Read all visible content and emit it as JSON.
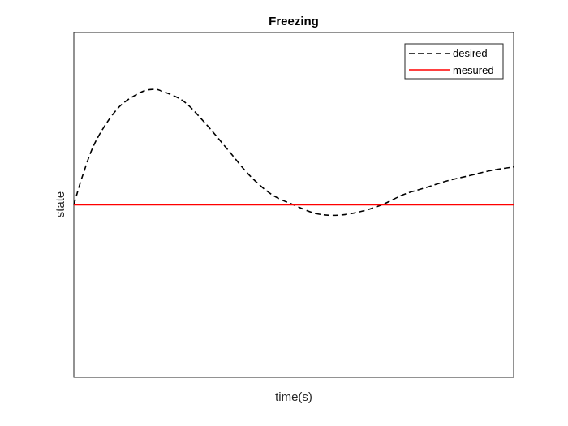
{
  "chart_data": {
    "type": "line",
    "title": "Freezing",
    "xlabel": "time(s)",
    "ylabel": "state",
    "xlim": [
      0,
      1
    ],
    "ylim": [
      -1,
      1
    ],
    "grid": false,
    "legend_position": "top-right",
    "series": [
      {
        "name": "desired",
        "color": "#000000",
        "line_style": "dashed",
        "x": [
          0,
          0.02,
          0.05,
          0.1,
          0.15,
          0.18,
          0.2,
          0.25,
          0.3,
          0.35,
          0.4,
          0.45,
          0.5,
          0.55,
          0.6,
          0.65,
          0.7,
          0.75,
          0.8,
          0.85,
          0.9,
          0.95,
          1.0
        ],
        "y": [
          0.0,
          0.17,
          0.37,
          0.56,
          0.65,
          0.67,
          0.66,
          0.6,
          0.47,
          0.32,
          0.17,
          0.06,
          0.0,
          -0.05,
          -0.06,
          -0.04,
          0.0,
          0.06,
          0.1,
          0.14,
          0.17,
          0.2,
          0.22
        ]
      },
      {
        "name": "mesured",
        "color": "#ff0000",
        "line_style": "solid",
        "x": [
          0,
          1
        ],
        "y": [
          0,
          0
        ]
      }
    ]
  }
}
